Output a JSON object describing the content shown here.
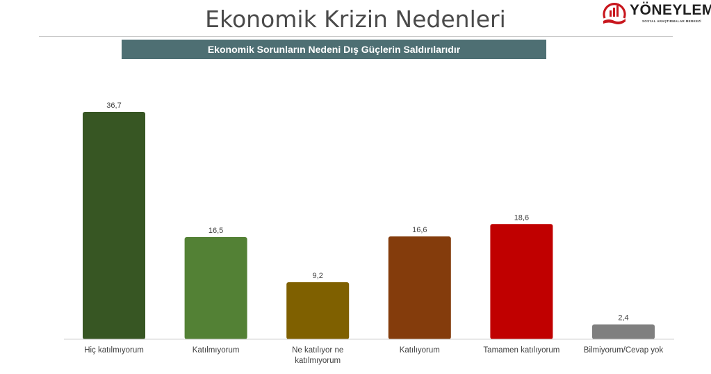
{
  "slide": {
    "title": "Ekonomik Krizin Nedenleri",
    "subtitle": "Ekonomik Sorunların Nedeni Dış Güçlerin Saldırılarıdır"
  },
  "logo": {
    "name": "YÖNEYLEM",
    "tagline": "SOSYAL ARAŞTIRMALAR MERKEZİ",
    "icon": "hand-bar-chart-logo-icon",
    "color": "#c8161d"
  },
  "chart_data": {
    "type": "bar",
    "title": "Ekonomik Sorunların Nedeni Dış Güçlerin Saldırılarıdır",
    "xlabel": "",
    "ylabel": "",
    "categories": [
      [
        "Hiç katılmıyorum"
      ],
      [
        "Katılmıyorum"
      ],
      [
        "Ne katılıyor ne",
        "katılmıyorum"
      ],
      [
        "Katılıyorum"
      ],
      [
        "Tamamen katılıyorum"
      ],
      [
        "Bilmiyorum/Cevap yok"
      ]
    ],
    "values": [
      36.7,
      16.5,
      9.2,
      16.6,
      18.6,
      2.4
    ],
    "value_labels": [
      "36,7",
      "16,5",
      "9,2",
      "16,6",
      "18,6",
      "2,4"
    ],
    "colors": [
      "#375623",
      "#538135",
      "#7f6000",
      "#843c0c",
      "#c00000",
      "#7f7f7f"
    ],
    "ylim": [
      0,
      36.7
    ],
    "grid": false,
    "legend": "none"
  }
}
